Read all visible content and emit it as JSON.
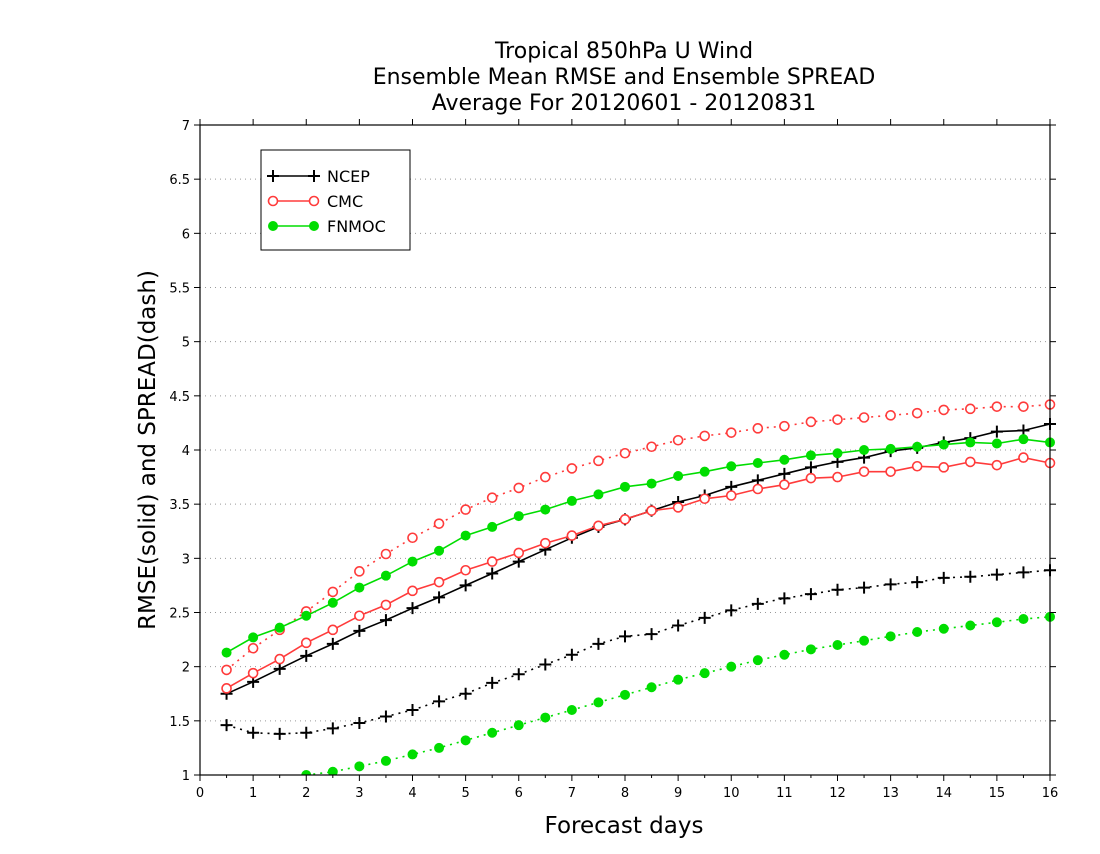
{
  "chart_data": {
    "type": "line",
    "title_lines": [
      "Tropical 850hPa U Wind",
      "Ensemble Mean RMSE and Ensemble SPREAD",
      "Average For 20120601 - 20120831"
    ],
    "xlabel": "Forecast days",
    "ylabel": "RMSE(solid) and SPREAD(dash)",
    "xlim": [
      0,
      16
    ],
    "ylim": [
      1,
      7
    ],
    "xticks": [
      0,
      1,
      2,
      3,
      4,
      5,
      6,
      7,
      8,
      9,
      10,
      11,
      12,
      13,
      14,
      15,
      16
    ],
    "yticks": [
      1,
      1.5,
      2,
      2.5,
      3,
      3.5,
      4,
      4.5,
      5,
      5.5,
      6,
      6.5,
      7
    ],
    "grid": "horizontal-dotted",
    "legend_position": "top-left",
    "x": [
      0.5,
      1,
      1.5,
      2,
      2.5,
      3,
      3.5,
      4,
      4.5,
      5,
      5.5,
      6,
      6.5,
      7,
      7.5,
      8,
      8.5,
      9,
      9.5,
      10,
      10.5,
      11,
      11.5,
      12,
      12.5,
      13,
      13.5,
      14,
      14.5,
      15,
      15.5,
      16
    ],
    "series": [
      {
        "name": "NCEP",
        "color": "#000000",
        "marker": "plus",
        "rmse": [
          1.75,
          1.86,
          1.98,
          2.1,
          2.21,
          2.33,
          2.43,
          2.54,
          2.64,
          2.75,
          2.86,
          2.97,
          3.08,
          3.19,
          3.29,
          3.36,
          3.44,
          3.52,
          3.58,
          3.66,
          3.72,
          3.78,
          3.84,
          3.89,
          3.93,
          3.99,
          4.02,
          4.07,
          4.11,
          4.17,
          4.18,
          4.24
        ],
        "spread": [
          1.46,
          1.39,
          1.38,
          1.39,
          1.43,
          1.48,
          1.54,
          1.6,
          1.68,
          1.75,
          1.85,
          1.93,
          2.02,
          2.11,
          2.21,
          2.28,
          2.3,
          2.38,
          2.45,
          2.52,
          2.58,
          2.63,
          2.67,
          2.71,
          2.73,
          2.76,
          2.78,
          2.82,
          2.83,
          2.85,
          2.87,
          2.89
        ]
      },
      {
        "name": "CMC",
        "color": "#ff3b3b",
        "marker": "open-circle",
        "rmse": [
          1.8,
          1.94,
          2.07,
          2.22,
          2.34,
          2.47,
          2.57,
          2.7,
          2.78,
          2.89,
          2.97,
          3.05,
          3.14,
          3.21,
          3.3,
          3.36,
          3.44,
          3.47,
          3.55,
          3.58,
          3.64,
          3.68,
          3.74,
          3.75,
          3.8,
          3.8,
          3.85,
          3.84,
          3.89,
          3.86,
          3.93,
          3.88
        ],
        "spread": [
          1.97,
          2.17,
          2.34,
          2.51,
          2.69,
          2.88,
          3.04,
          3.19,
          3.32,
          3.45,
          3.56,
          3.65,
          3.75,
          3.83,
          3.9,
          3.97,
          4.03,
          4.09,
          4.13,
          4.16,
          4.2,
          4.22,
          4.26,
          4.28,
          4.3,
          4.32,
          4.34,
          4.37,
          4.38,
          4.4,
          4.4,
          4.42
        ]
      },
      {
        "name": "FNMOC",
        "color": "#00dd00",
        "marker": "filled-circle",
        "rmse": [
          2.13,
          2.27,
          2.36,
          2.47,
          2.59,
          2.73,
          2.84,
          2.97,
          3.07,
          3.21,
          3.29,
          3.39,
          3.45,
          3.53,
          3.59,
          3.66,
          3.69,
          3.76,
          3.8,
          3.85,
          3.88,
          3.91,
          3.95,
          3.97,
          4.0,
          4.01,
          4.03,
          4.05,
          4.07,
          4.06,
          4.1,
          4.07
        ],
        "spread": [
          null,
          null,
          null,
          1.0,
          1.03,
          1.08,
          1.13,
          1.19,
          1.25,
          1.32,
          1.39,
          1.46,
          1.53,
          1.6,
          1.67,
          1.74,
          1.81,
          1.88,
          1.94,
          2.0,
          2.06,
          2.11,
          2.16,
          2.2,
          2.24,
          2.28,
          2.32,
          2.35,
          2.38,
          2.41,
          2.44,
          2.46
        ]
      }
    ]
  }
}
